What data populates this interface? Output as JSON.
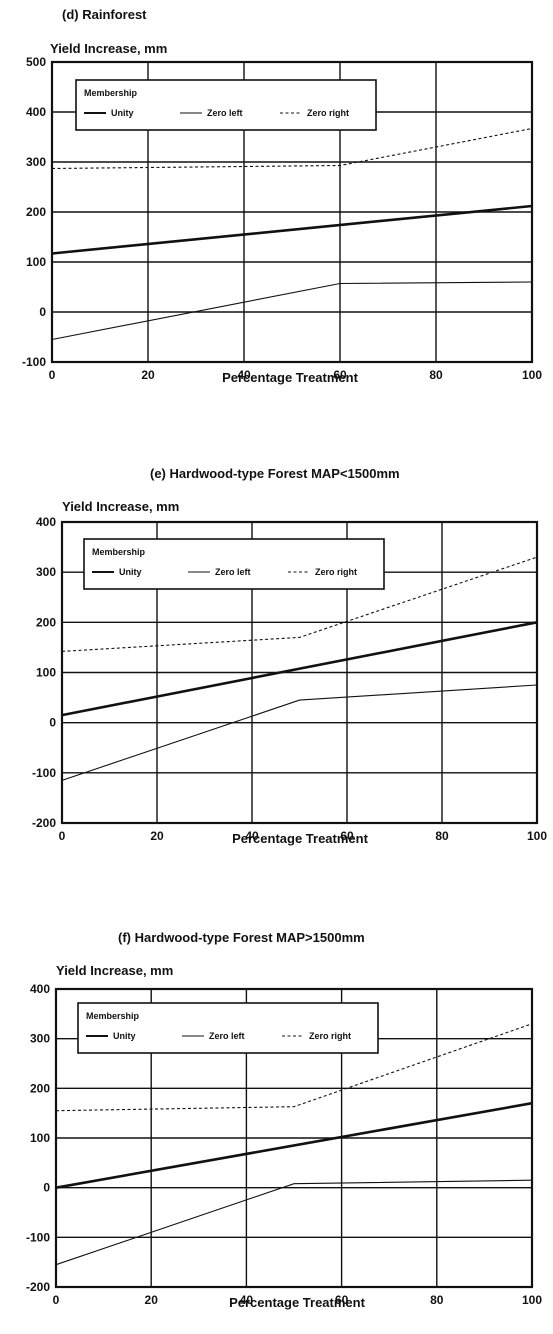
{
  "chart_data": [
    {
      "type": "line",
      "title": "(d) Rainforest",
      "ylabel": "Yield Increase, mm",
      "xlabel": "Percentage Treatment",
      "xlim": [
        0,
        100
      ],
      "ylim": [
        -100,
        500
      ],
      "xticks": [
        0,
        20,
        40,
        60,
        80,
        100
      ],
      "yticks": [
        -100,
        0,
        100,
        200,
        300,
        400,
        500
      ],
      "grid": true,
      "legend": {
        "title": "Membership",
        "placement": "top-left"
      },
      "series": [
        {
          "name": "Unity",
          "style": "thick",
          "x": [
            0,
            100
          ],
          "y": [
            117,
            212
          ]
        },
        {
          "name": "Zero left",
          "style": "thin",
          "x": [
            0,
            60,
            100
          ],
          "y": [
            -55,
            57,
            60
          ]
        },
        {
          "name": "Zero right",
          "style": "dashed",
          "x": [
            0,
            60,
            100
          ],
          "y": [
            287,
            293,
            367
          ]
        }
      ]
    },
    {
      "type": "line",
      "title": "(e) Hardwood-type Forest MAP<1500mm",
      "ylabel": "Yield Increase, mm",
      "xlabel": "Percentage Treatment",
      "xlim": [
        0,
        100
      ],
      "ylim": [
        -200,
        400
      ],
      "xticks": [
        0,
        20,
        40,
        60,
        80,
        100
      ],
      "yticks": [
        -200,
        -100,
        0,
        100,
        200,
        300,
        400
      ],
      "grid": true,
      "legend": {
        "title": "Membership",
        "placement": "top-left"
      },
      "series": [
        {
          "name": "Unity",
          "style": "thick",
          "x": [
            0,
            100
          ],
          "y": [
            15,
            200
          ]
        },
        {
          "name": "Zero left",
          "style": "thin",
          "x": [
            0,
            50,
            100
          ],
          "y": [
            -115,
            45,
            75
          ]
        },
        {
          "name": "Zero right",
          "style": "dashed",
          "x": [
            0,
            50,
            100
          ],
          "y": [
            142,
            170,
            330
          ]
        }
      ]
    },
    {
      "type": "line",
      "title": "(f) Hardwood-type Forest MAP>1500mm",
      "ylabel": "Yield Increase, mm",
      "xlabel": "Percentage Treatment",
      "xlim": [
        0,
        100
      ],
      "ylim": [
        -200,
        400
      ],
      "xticks": [
        0,
        20,
        40,
        60,
        80,
        100
      ],
      "yticks": [
        -200,
        -100,
        0,
        100,
        200,
        300,
        400
      ],
      "grid": true,
      "legend": {
        "title": "Membership",
        "placement": "top-left"
      },
      "series": [
        {
          "name": "Unity",
          "style": "thick",
          "x": [
            0,
            100
          ],
          "y": [
            0,
            170
          ]
        },
        {
          "name": "Zero left",
          "style": "thin",
          "x": [
            0,
            50,
            100
          ],
          "y": [
            -155,
            8,
            15
          ]
        },
        {
          "name": "Zero right",
          "style": "dashed",
          "x": [
            0,
            50,
            100
          ],
          "y": [
            155,
            163,
            330
          ]
        }
      ]
    }
  ]
}
